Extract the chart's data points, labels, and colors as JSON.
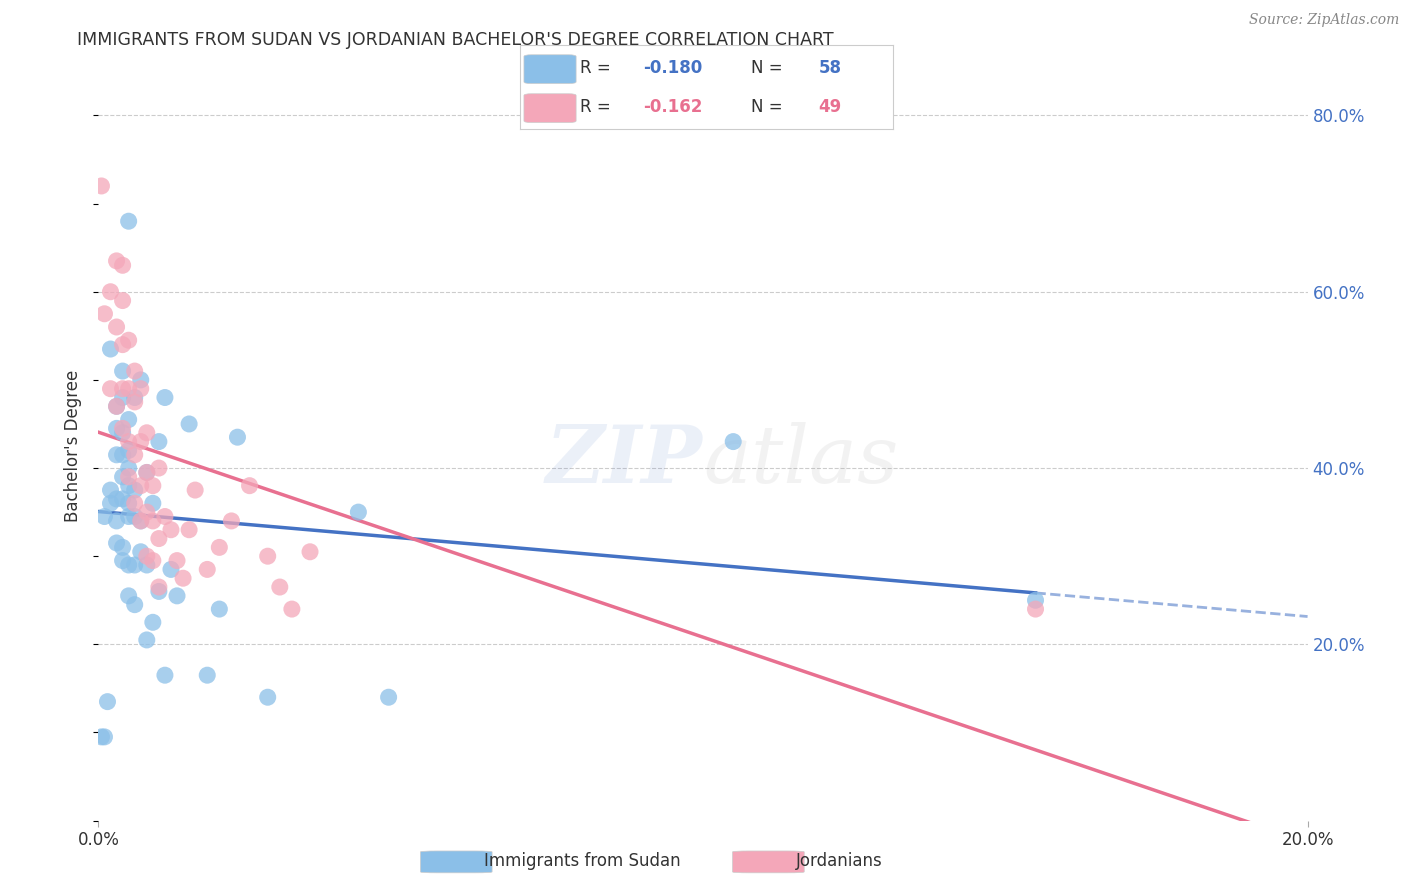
{
  "title": "IMMIGRANTS FROM SUDAN VS JORDANIAN BACHELOR'S DEGREE CORRELATION CHART",
  "source": "Source: ZipAtlas.com",
  "ylabel": "Bachelor's Degree",
  "xlim": [
    0.0,
    0.2
  ],
  "ylim": [
    0.0,
    0.85
  ],
  "background_color": "#ffffff",
  "grid_color": "#cccccc",
  "color_sudan": "#8BBFE8",
  "color_jordan": "#F4A7B9",
  "trendline_sudan_color": "#4472C4",
  "trendline_jordan_color": "#E87090",
  "sudan_x": [
    0.0005,
    0.001,
    0.001,
    0.0015,
    0.002,
    0.002,
    0.002,
    0.003,
    0.003,
    0.003,
    0.003,
    0.003,
    0.003,
    0.004,
    0.004,
    0.004,
    0.004,
    0.004,
    0.004,
    0.004,
    0.004,
    0.005,
    0.005,
    0.005,
    0.005,
    0.005,
    0.005,
    0.005,
    0.005,
    0.005,
    0.006,
    0.006,
    0.006,
    0.006,
    0.006,
    0.007,
    0.007,
    0.007,
    0.008,
    0.008,
    0.008,
    0.009,
    0.009,
    0.01,
    0.01,
    0.011,
    0.011,
    0.012,
    0.013,
    0.015,
    0.018,
    0.02,
    0.023,
    0.028,
    0.043,
    0.048,
    0.105,
    0.155
  ],
  "sudan_y": [
    0.095,
    0.095,
    0.345,
    0.135,
    0.36,
    0.375,
    0.535,
    0.315,
    0.34,
    0.365,
    0.415,
    0.445,
    0.47,
    0.295,
    0.31,
    0.365,
    0.39,
    0.415,
    0.44,
    0.48,
    0.51,
    0.255,
    0.29,
    0.345,
    0.36,
    0.38,
    0.4,
    0.42,
    0.455,
    0.68,
    0.245,
    0.29,
    0.345,
    0.375,
    0.48,
    0.305,
    0.34,
    0.5,
    0.205,
    0.29,
    0.395,
    0.225,
    0.36,
    0.26,
    0.43,
    0.165,
    0.48,
    0.285,
    0.255,
    0.45,
    0.165,
    0.24,
    0.435,
    0.14,
    0.35,
    0.14,
    0.43,
    0.25
  ],
  "jordan_x": [
    0.0005,
    0.001,
    0.002,
    0.002,
    0.003,
    0.003,
    0.003,
    0.004,
    0.004,
    0.004,
    0.004,
    0.004,
    0.005,
    0.005,
    0.005,
    0.005,
    0.006,
    0.006,
    0.006,
    0.006,
    0.007,
    0.007,
    0.007,
    0.007,
    0.008,
    0.008,
    0.008,
    0.008,
    0.009,
    0.009,
    0.009,
    0.01,
    0.01,
    0.01,
    0.011,
    0.012,
    0.013,
    0.014,
    0.015,
    0.016,
    0.018,
    0.02,
    0.022,
    0.025,
    0.028,
    0.03,
    0.032,
    0.035,
    0.155
  ],
  "jordan_y": [
    0.72,
    0.575,
    0.49,
    0.6,
    0.47,
    0.56,
    0.635,
    0.445,
    0.49,
    0.54,
    0.59,
    0.63,
    0.39,
    0.43,
    0.49,
    0.545,
    0.36,
    0.415,
    0.475,
    0.51,
    0.34,
    0.38,
    0.43,
    0.49,
    0.3,
    0.35,
    0.395,
    0.44,
    0.295,
    0.34,
    0.38,
    0.265,
    0.32,
    0.4,
    0.345,
    0.33,
    0.295,
    0.275,
    0.33,
    0.375,
    0.285,
    0.31,
    0.34,
    0.38,
    0.3,
    0.265,
    0.24,
    0.305,
    0.24
  ]
}
